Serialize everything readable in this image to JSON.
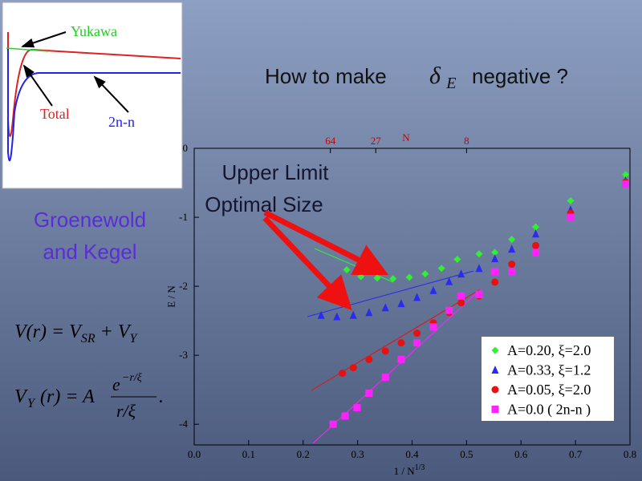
{
  "title": {
    "before": "How to make",
    "symbol": "δ",
    "symbol_sub": "E",
    "after": "negative ?"
  },
  "inset": {
    "labels": [
      "Yukawa",
      "Total",
      "2n-n"
    ]
  },
  "side_text": [
    "Groenewold",
    "and Kegel"
  ],
  "annotation": [
    "Upper Limit",
    "Optimal Size"
  ],
  "formulas": [
    {
      "parts": [
        "V(r) = V",
        "SR",
        " + V",
        "Y"
      ]
    },
    {
      "parts": [
        "V",
        "Y",
        "(r) = A",
        "e",
        "−r/ξ",
        "r/ξ",
        "."
      ]
    }
  ],
  "chart_data": {
    "type": "scatter",
    "xlabel": "1 / N",
    "xlabel_sup": "1/3",
    "ylabel": "E / N",
    "x2label": "N",
    "xlim": [
      0,
      0.8
    ],
    "ylim": [
      -4.3,
      0
    ],
    "xticks": [
      {
        "value": 0,
        "label": "0.0"
      },
      0.1,
      0.2,
      0.3,
      0.4,
      0.5,
      0.6,
      0.7,
      0.8
    ],
    "yticks": [
      0,
      -1,
      -2,
      -3,
      -4
    ],
    "x2ticks": [
      {
        "value": 0.25,
        "label": "64"
      },
      {
        "value": 0.3333,
        "label": "27"
      },
      {
        "value": 0.5,
        "label": "8"
      }
    ],
    "legend": "lower right",
    "series": [
      {
        "name": "A=0.20, ξ=2.0",
        "color": "#33ee33",
        "marker": "diamond",
        "x": [
          0.28,
          0.306,
          0.336,
          0.365,
          0.395,
          0.424,
          0.454,
          0.483,
          0.523,
          0.552,
          0.583,
          0.627,
          0.691,
          0.792
        ],
        "values": [
          -1.76,
          -1.86,
          -1.88,
          -1.89,
          -1.87,
          -1.82,
          -1.74,
          -1.61,
          -1.53,
          -1.51,
          -1.32,
          -1.14,
          -0.76,
          -0.38
        ]
      },
      {
        "name": "A=0.33, ξ=1.2",
        "color": "#2a2af0",
        "marker": "triangle",
        "x": [
          0.233,
          0.262,
          0.292,
          0.321,
          0.351,
          0.38,
          0.409,
          0.439,
          0.468,
          0.49,
          0.523,
          0.552,
          0.583,
          0.627,
          0.691,
          0.792
        ],
        "values": [
          -2.42,
          -2.44,
          -2.42,
          -2.38,
          -2.31,
          -2.25,
          -2.16,
          -2.06,
          -1.93,
          -1.82,
          -1.74,
          -1.6,
          -1.46,
          -1.24,
          -0.89,
          -0.47
        ]
      },
      {
        "name": "A=0.05, ξ=2.0",
        "color": "#e81010",
        "marker": "circle",
        "x": [
          0.272,
          0.292,
          0.321,
          0.351,
          0.38,
          0.409,
          0.439,
          0.468,
          0.49,
          0.523,
          0.552,
          0.583,
          0.627,
          0.691,
          0.792
        ],
        "values": [
          -3.26,
          -3.18,
          -3.06,
          -2.94,
          -2.82,
          -2.68,
          -2.53,
          -2.38,
          -2.24,
          -2.14,
          -1.94,
          -1.68,
          -1.41,
          -0.94,
          -0.49
        ]
      },
      {
        "name": "A=0.0 ( 2n-n )",
        "color": "#ff22ff",
        "marker": "square",
        "x": [
          0.255,
          0.277,
          0.299,
          0.321,
          0.351,
          0.38,
          0.409,
          0.439,
          0.468,
          0.49,
          0.523,
          0.552,
          0.583,
          0.627,
          0.691,
          0.792
        ],
        "values": [
          -4.0,
          -3.88,
          -3.76,
          -3.55,
          -3.32,
          -3.06,
          -2.82,
          -2.59,
          -2.35,
          -2.14,
          -2.12,
          -1.79,
          -1.79,
          -1.51,
          -1.0,
          -0.52
        ]
      }
    ]
  }
}
